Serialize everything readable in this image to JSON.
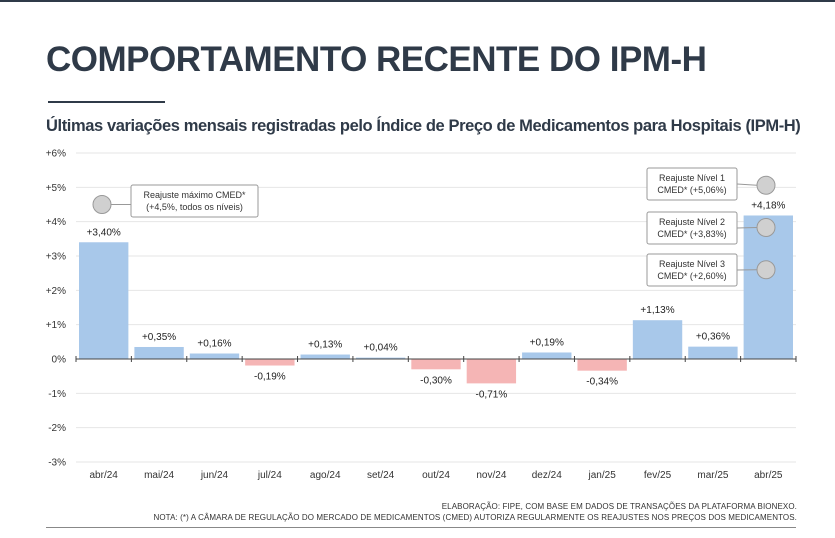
{
  "title": "COMPORTAMENTO RECENTE DO IPM-H",
  "subtitle": "Últimas variações mensais registradas pelo Índice de Preço de Medicamentos para Hospitais (IPM-H)",
  "colors": {
    "text": "#2f3a48",
    "positive": "#a8c8ea",
    "negative": "#f5b5b5",
    "grid": "#e6e6e6",
    "marker": "#d0d0d0"
  },
  "chart_data": {
    "type": "bar",
    "categories": [
      "abr/24",
      "mai/24",
      "jun/24",
      "jul/24",
      "ago/24",
      "set/24",
      "out/24",
      "nov/24",
      "dez/24",
      "jan/25",
      "fev/25",
      "mar/25",
      "abr/25"
    ],
    "values": [
      3.4,
      0.35,
      0.16,
      -0.19,
      0.13,
      0.04,
      -0.3,
      -0.71,
      0.19,
      -0.34,
      1.13,
      0.36,
      4.18
    ],
    "value_labels": [
      "+3,40%",
      "+0,35%",
      "+0,16%",
      "-0,19%",
      "+0,13%",
      "+0,04%",
      "-0,30%",
      "-0,71%",
      "+0,19%",
      "-0,34%",
      "+1,13%",
      "+0,36%",
      "+4,18%"
    ],
    "y_ticks": [
      6,
      5,
      4,
      3,
      2,
      1,
      0,
      -1,
      -2,
      -3
    ],
    "y_tick_labels": [
      "+6%",
      "+5%",
      "+4%",
      "+3%",
      "+2%",
      "+1%",
      "0%",
      "-1%",
      "-2%",
      "-3%"
    ],
    "ylim": [
      -3,
      6
    ],
    "grid": true,
    "annotations": [
      {
        "category": "abr/24",
        "value": 4.5,
        "lines": [
          "Reajuste máximo CMED*",
          "(+4,5%, todos os níveis)"
        ]
      },
      {
        "category": "abr/25",
        "value": 5.06,
        "lines": [
          "Reajuste Nível 1",
          "CMED* (+5,06%)"
        ]
      },
      {
        "category": "abr/25",
        "value": 3.83,
        "lines": [
          "Reajuste Nível 2",
          "CMED* (+3,83%)"
        ]
      },
      {
        "category": "abr/25",
        "value": 2.6,
        "lines": [
          "Reajuste Nível 3",
          "CMED* (+2,60%)"
        ]
      }
    ]
  },
  "footer": {
    "line1": "ELABORAÇÃO: FIPE, COM BASE EM DADOS DE TRANSAÇÕES DA PLATAFORMA BIONEXO.",
    "line2": "NOTA: (*) A CÂMARA DE REGULAÇÃO DO MERCADO DE MEDICAMENTOS (CMED) AUTORIZA REGULARMENTE OS REAJUSTES NOS PREÇOS DOS MEDICAMENTOS."
  }
}
